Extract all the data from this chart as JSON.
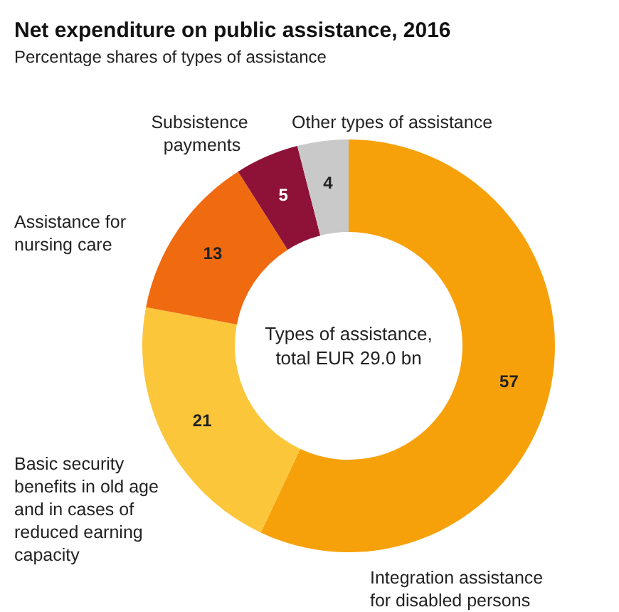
{
  "chart_data": {
    "type": "donut",
    "title": "Net expenditure on public assistance, 2016",
    "subtitle": "Percentage shares of types of assistance",
    "categories": [
      "Integration assistance for disabled persons",
      "Basic security benefits in old age and in cases of reduced earning capacity",
      "Assistance for nursing care",
      "Subsistence payments",
      "Other types of assistance"
    ],
    "values": [
      57,
      21,
      13,
      5,
      4
    ],
    "colors": [
      "#f7a10a",
      "#fbc63a",
      "#f06a10",
      "#8e1237",
      "#c9c9c9"
    ],
    "annotations": [
      "Types of assistance,total EUR 29.0 bn"
    ],
    "data_labels": true,
    "legend": false
  }
}
